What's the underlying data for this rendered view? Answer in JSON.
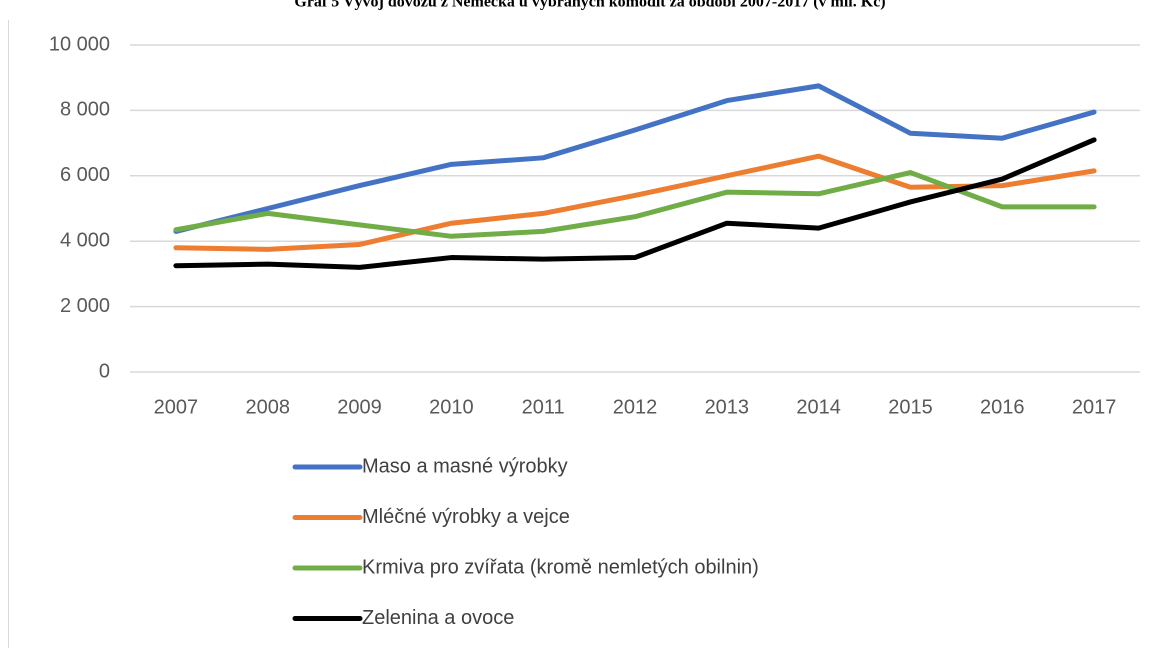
{
  "chart_data": {
    "type": "line",
    "title": "Graf 5 Vývoj dovozu z Německa u vybraných komodit za období 2007-2017 (v mil. Kč)",
    "categories": [
      "2007",
      "2008",
      "2009",
      "2010",
      "2011",
      "2012",
      "2013",
      "2014",
      "2015",
      "2016",
      "2017"
    ],
    "series": [
      {
        "name": "Maso a masné výrobky",
        "color": "#4472c4",
        "values": [
          4300,
          5000,
          5700,
          6350,
          6550,
          7400,
          8300,
          8750,
          7300,
          7150,
          7950
        ]
      },
      {
        "name": "Mléčné výrobky a vejce",
        "color": "#ed7d31",
        "values": [
          3800,
          3750,
          3900,
          4550,
          4850,
          5400,
          6000,
          6600,
          5650,
          5700,
          6150
        ]
      },
      {
        "name": "Krmiva pro zvířata (kromě nemletých obilnin)",
        "color": "#70ad47",
        "values": [
          4350,
          4850,
          4500,
          4150,
          4300,
          4750,
          5500,
          5450,
          6100,
          5050,
          5050
        ]
      },
      {
        "name": "Zelenina a ovoce",
        "color": "#000000",
        "values": [
          3250,
          3300,
          3200,
          3500,
          3450,
          3500,
          4550,
          4400,
          5200,
          5900,
          7100
        ]
      }
    ],
    "ylim": [
      0,
      10000
    ],
    "yticks": [
      0,
      {
        "value": 2000,
        "label": "2 000"
      },
      {
        "value": 4000,
        "label": "4 000"
      },
      {
        "value": 6000,
        "label": "6 000"
      },
      {
        "value": 8000,
        "label": "8 000"
      },
      {
        "value": 10000,
        "label": "10 000"
      }
    ],
    "grid": true,
    "legend": "bottom"
  }
}
